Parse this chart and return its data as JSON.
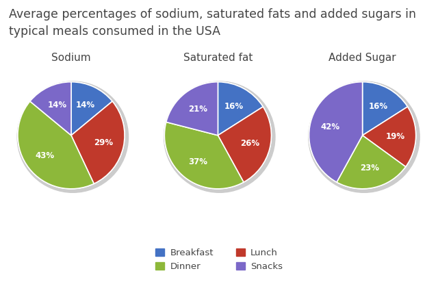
{
  "title": "Average percentages of sodium, saturated fats and added sugars in\ntypical meals consumed in the USA",
  "title_fontsize": 12.5,
  "charts": [
    {
      "title": "Sodium",
      "values": [
        14,
        29,
        43,
        14
      ],
      "labels": [
        "14%",
        "29%",
        "43%",
        "14%"
      ],
      "startangle": 90
    },
    {
      "title": "Saturated fat",
      "values": [
        16,
        26,
        37,
        21
      ],
      "labels": [
        "16%",
        "26%",
        "37%",
        "21%"
      ],
      "startangle": 90
    },
    {
      "title": "Added Sugar",
      "values": [
        16,
        19,
        23,
        42
      ],
      "labels": [
        "16%",
        "19%",
        "23%",
        "42%"
      ],
      "startangle": 90
    }
  ],
  "colors": [
    "#4472c4",
    "#c0392b",
    "#8db83a",
    "#7b68c8"
  ],
  "legend_labels": [
    "Breakfast",
    "Dinner",
    "Lunch",
    "Snacks"
  ],
  "legend_colors_order": [
    0,
    2,
    1,
    3
  ],
  "background_color": "#ffffff",
  "text_color": "#444444"
}
